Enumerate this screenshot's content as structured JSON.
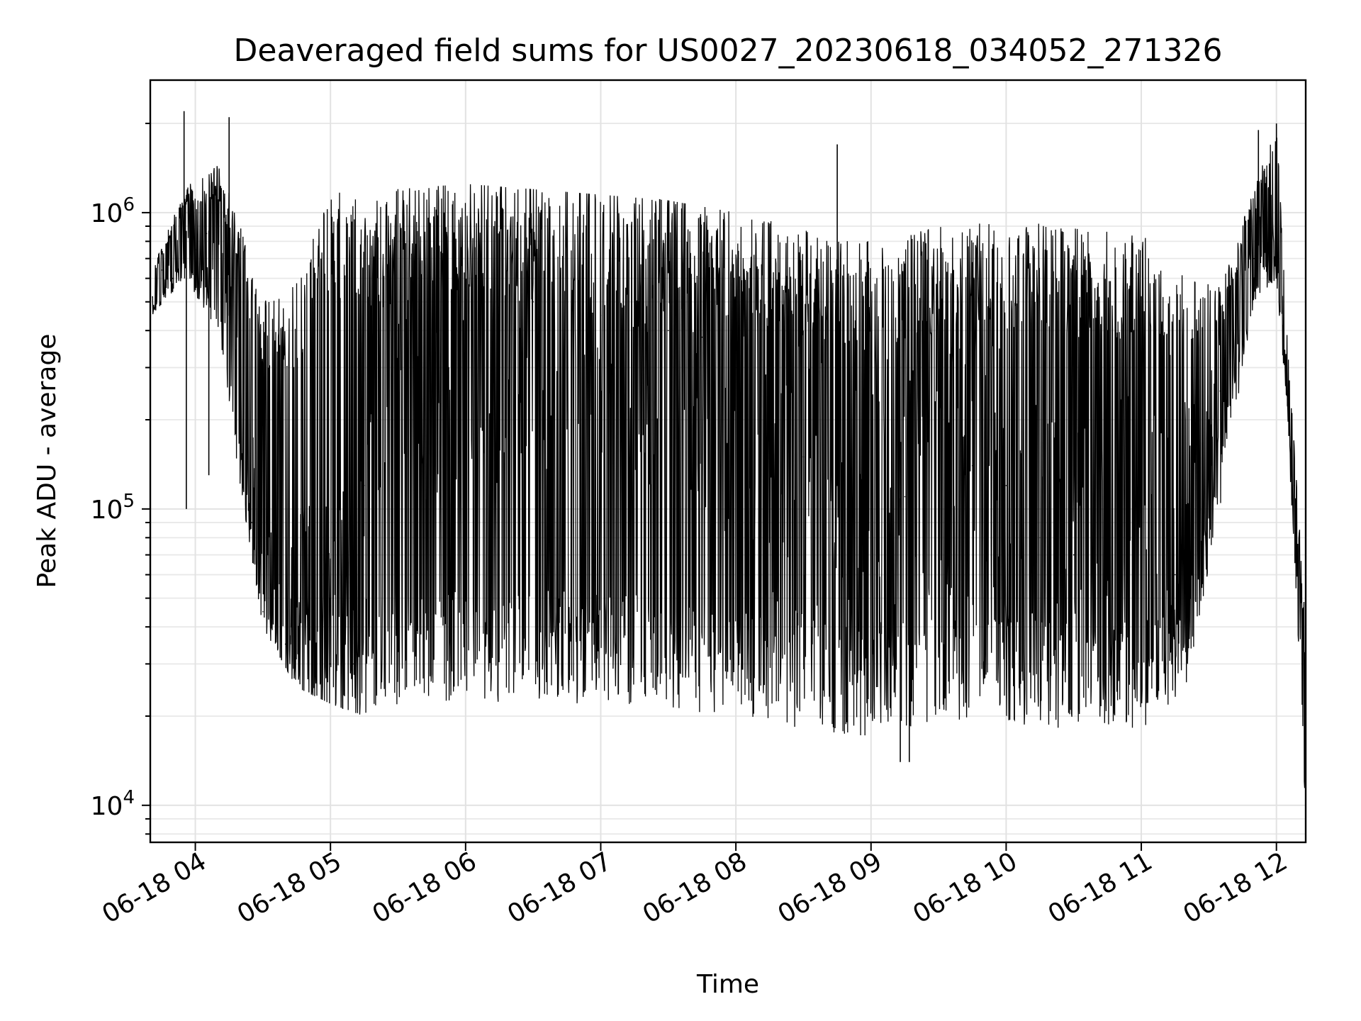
{
  "chart_data": {
    "type": "line",
    "title": "Deaveraged field sums for US0027_20230618_034052_271326",
    "xlabel": "Time",
    "ylabel": "Peak ADU - average",
    "yscale": "log",
    "ylim": [
      7500,
      2800000
    ],
    "xlim": [
      "2023-06-18 03:40",
      "2023-06-18 12:13"
    ],
    "grid": true,
    "x_ticks": [
      {
        "label": "06-18 04",
        "value": "2023-06-18 04:00"
      },
      {
        "label": "06-18 05",
        "value": "2023-06-18 05:00"
      },
      {
        "label": "06-18 06",
        "value": "2023-06-18 06:00"
      },
      {
        "label": "06-18 07",
        "value": "2023-06-18 07:00"
      },
      {
        "label": "06-18 08",
        "value": "2023-06-18 08:00"
      },
      {
        "label": "06-18 09",
        "value": "2023-06-18 09:00"
      },
      {
        "label": "06-18 10",
        "value": "2023-06-18 10:00"
      },
      {
        "label": "06-18 11",
        "value": "2023-06-18 11:00"
      },
      {
        "label": "06-18 12",
        "value": "2023-06-18 12:00"
      }
    ],
    "y_ticks": [
      {
        "base": "10",
        "exp": "4",
        "value": 10000
      },
      {
        "base": "10",
        "exp": "5",
        "value": 100000
      },
      {
        "base": "10",
        "exp": "6",
        "value": 1000000
      }
    ],
    "series": [
      {
        "color": "#000000",
        "points": [
          [
            "2023-06-18 03:41",
            520000
          ],
          [
            "2023-06-18 03:45",
            640000
          ],
          [
            "2023-06-18 03:50",
            600000
          ],
          [
            "2023-06-18 03:55",
            900000
          ],
          [
            "2023-06-18 04:00",
            750000
          ],
          [
            "2023-06-18 04:05",
            850000
          ],
          [
            "2023-06-18 04:10",
            950000
          ],
          [
            "2023-06-18 04:15",
            450000
          ],
          [
            "2023-06-18 04:20",
            200000
          ],
          [
            "2023-06-18 04:25",
            90000
          ],
          [
            "2023-06-18 04:30",
            45000
          ],
          [
            "2023-06-18 04:40",
            35000
          ],
          [
            "2023-06-18 04:50",
            32000
          ],
          [
            "2023-06-18 05:00",
            30000
          ],
          [
            "2023-06-18 05:10",
            30000
          ],
          [
            "2023-06-18 05:15",
            120000
          ],
          [
            "2023-06-18 05:20",
            300000
          ],
          [
            "2023-06-18 05:30",
            400000
          ],
          [
            "2023-06-18 05:40",
            380000
          ],
          [
            "2023-06-18 05:50",
            420000
          ],
          [
            "2023-06-18 06:00",
            450000
          ],
          [
            "2023-06-18 06:15",
            480000
          ],
          [
            "2023-06-18 06:30",
            500000
          ],
          [
            "2023-06-18 06:45",
            480000
          ],
          [
            "2023-06-18 07:00",
            450000
          ],
          [
            "2023-06-18 07:15",
            420000
          ],
          [
            "2023-06-18 07:30",
            400000
          ],
          [
            "2023-06-18 07:45",
            380000
          ],
          [
            "2023-06-18 08:00",
            300000
          ],
          [
            "2023-06-18 08:15",
            200000
          ],
          [
            "2023-06-18 08:30",
            150000
          ],
          [
            "2023-06-18 08:45",
            120000
          ],
          [
            "2023-06-18 09:00",
            100000
          ],
          [
            "2023-06-18 09:15",
            110000
          ],
          [
            "2023-06-18 09:30",
            130000
          ],
          [
            "2023-06-18 09:45",
            140000
          ],
          [
            "2023-06-18 10:00",
            120000
          ],
          [
            "2023-06-18 10:15",
            80000
          ],
          [
            "2023-06-18 10:30",
            70000
          ],
          [
            "2023-06-18 10:45",
            80000
          ],
          [
            "2023-06-18 11:00",
            70000
          ],
          [
            "2023-06-18 11:15",
            60000
          ],
          [
            "2023-06-18 11:25",
            100000
          ],
          [
            "2023-06-18 11:35",
            250000
          ],
          [
            "2023-06-18 11:45",
            450000
          ],
          [
            "2023-06-18 11:50",
            700000
          ],
          [
            "2023-06-18 11:55",
            900000
          ],
          [
            "2023-06-18 12:00",
            700000
          ],
          [
            "2023-06-18 12:05",
            250000
          ],
          [
            "2023-06-18 12:08",
            120000
          ],
          [
            "2023-06-18 12:11",
            50000
          ],
          [
            "2023-06-18 12:13",
            10000
          ]
        ],
        "range_envelope": [
          [
            "2023-06-18 03:41",
            450000,
            650000
          ],
          [
            "2023-06-18 03:55",
            600000,
            1200000
          ],
          [
            "2023-06-18 04:10",
            400000,
            1500000
          ],
          [
            "2023-06-18 04:20",
            120000,
            900000
          ],
          [
            "2023-06-18 04:30",
            40000,
            500000
          ],
          [
            "2023-06-18 04:45",
            25000,
            600000
          ],
          [
            "2023-06-18 05:00",
            22000,
            1200000
          ],
          [
            "2023-06-18 05:15",
            20000,
            1100000
          ],
          [
            "2023-06-18 05:30",
            22000,
            1200000
          ],
          [
            "2023-06-18 06:00",
            22000,
            1250000
          ],
          [
            "2023-06-18 06:30",
            22000,
            1200000
          ],
          [
            "2023-06-18 07:00",
            22000,
            1150000
          ],
          [
            "2023-06-18 07:30",
            21000,
            1100000
          ],
          [
            "2023-06-18 08:00",
            20000,
            1000000
          ],
          [
            "2023-06-18 08:30",
            18000,
            900000
          ],
          [
            "2023-06-18 09:00",
            17000,
            800000
          ],
          [
            "2023-06-18 09:30",
            19000,
            900000
          ],
          [
            "2023-06-18 10:00",
            19000,
            950000
          ],
          [
            "2023-06-18 10:30",
            18000,
            900000
          ],
          [
            "2023-06-18 11:00",
            18000,
            850000
          ],
          [
            "2023-06-18 11:20",
            25000,
            600000
          ],
          [
            "2023-06-18 11:35",
            100000,
            600000
          ],
          [
            "2023-06-18 11:50",
            500000,
            1200000
          ],
          [
            "2023-06-18 12:00",
            600000,
            2000000
          ],
          [
            "2023-06-18 12:05",
            200000,
            400000
          ],
          [
            "2023-06-18 12:13",
            9000,
            40000
          ]
        ],
        "spikes": [
          [
            "2023-06-18 03:55",
            2200000
          ],
          [
            "2023-06-18 04:15",
            2100000
          ],
          [
            "2023-06-18 08:45",
            1700000
          ],
          [
            "2023-06-18 11:52",
            1900000
          ],
          [
            "2023-06-18 12:00",
            2000000
          ],
          [
            "2023-06-18 03:56",
            100000
          ],
          [
            "2023-06-18 04:06",
            130000
          ],
          [
            "2023-06-18 09:13",
            14000
          ],
          [
            "2023-06-18 09:17",
            14000
          ]
        ]
      }
    ]
  }
}
